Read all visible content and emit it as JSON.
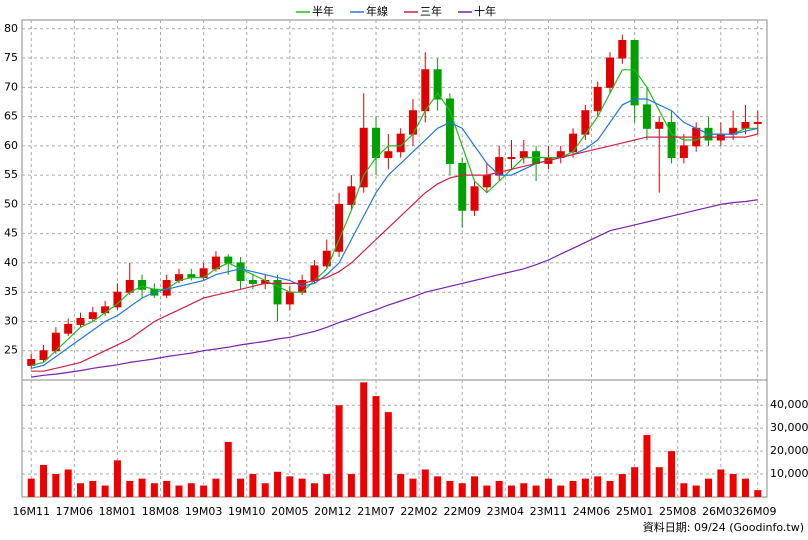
{
  "chart_data": {
    "type": "candlestick",
    "x": [
      0,
      2,
      4,
      6,
      8,
      10,
      12,
      14,
      16,
      18,
      20,
      22,
      24,
      26,
      28,
      30,
      32,
      34,
      36,
      38,
      40,
      42,
      44,
      46,
      48,
      50,
      52,
      54,
      56,
      58,
      60,
      62,
      64,
      66,
      68,
      70,
      72,
      74,
      76,
      78,
      80,
      82,
      84,
      86,
      88,
      90,
      92,
      94,
      96,
      98,
      100,
      102,
      104,
      106,
      108,
      110,
      112,
      114,
      116,
      118
    ],
    "open": [
      22.5,
      23.5,
      25,
      28,
      29.5,
      30.5,
      31.5,
      32.5,
      35,
      37,
      35.5,
      34.5,
      37,
      38,
      37.5,
      39,
      41,
      40,
      37,
      36.5,
      37,
      33,
      35,
      37,
      39.5,
      42,
      50,
      53,
      63,
      58,
      59,
      62,
      66,
      73,
      68,
      57,
      49,
      53,
      55,
      58,
      58,
      59,
      57,
      58,
      59,
      62,
      66,
      70,
      75,
      78,
      67,
      63,
      64,
      58,
      60,
      63,
      61,
      62,
      63,
      64
    ],
    "high": [
      24.5,
      26,
      29,
      30.5,
      31.5,
      32.5,
      33.5,
      36.5,
      40,
      38,
      36.5,
      38,
      39,
      39,
      40,
      42,
      41.5,
      41,
      38,
      38,
      38,
      36,
      38,
      40.5,
      44,
      52,
      55,
      69,
      65,
      62,
      63,
      68,
      76,
      75,
      69,
      58,
      54,
      57,
      60,
      61,
      61,
      60,
      60,
      60,
      63,
      67,
      71,
      76,
      79,
      78,
      70,
      65,
      66,
      62,
      64,
      65,
      64,
      66,
      67,
      66
    ],
    "low": [
      22,
      23,
      24.5,
      27.5,
      29,
      30,
      31,
      32,
      34.5,
      34,
      34,
      34,
      36.5,
      37,
      37,
      38.5,
      38,
      35.5,
      35.5,
      35.5,
      30,
      32,
      34.5,
      36.5,
      39,
      41,
      49,
      52,
      55,
      56,
      58,
      60,
      64,
      66,
      55,
      46,
      48,
      52,
      54,
      56,
      57,
      54,
      56,
      57,
      58,
      61,
      65,
      69,
      74,
      64,
      61,
      52,
      57,
      57,
      59,
      60,
      60,
      61,
      62,
      62
    ],
    "close": [
      23.5,
      25,
      28,
      29.5,
      30.5,
      31.5,
      32.5,
      35,
      37,
      35.5,
      34.5,
      37,
      38,
      37.5,
      39,
      41,
      40,
      37,
      36.5,
      37,
      33,
      35,
      37,
      39.5,
      42,
      50,
      53,
      63,
      58,
      59,
      62,
      66,
      73,
      68,
      57,
      49,
      53,
      55,
      58,
      58,
      59,
      57,
      58,
      59,
      62,
      66,
      70,
      75,
      78,
      67,
      63,
      64,
      58,
      60,
      63,
      61,
      62,
      63,
      64,
      64
    ],
    "up_color": "#e00000",
    "down_color": "#00a000",
    "xlim": [
      -1.5,
      119.5
    ],
    "xticks": [
      {
        "value": 0,
        "label": "16M11"
      },
      {
        "value": 7,
        "label": "17M06"
      },
      {
        "value": 14,
        "label": "18M01"
      },
      {
        "value": 21,
        "label": "18M08"
      },
      {
        "value": 28,
        "label": "19M03"
      },
      {
        "value": 35,
        "label": "19M10"
      },
      {
        "value": 42,
        "label": "20M05"
      },
      {
        "value": 49,
        "label": "20M12"
      },
      {
        "value": 56,
        "label": "21M07"
      },
      {
        "value": 63,
        "label": "22M02"
      },
      {
        "value": 70,
        "label": "22M09"
      },
      {
        "value": 77,
        "label": "23M04"
      },
      {
        "value": 84,
        "label": "23M11"
      },
      {
        "value": 91,
        "label": "24M06"
      },
      {
        "value": 98,
        "label": "25M01"
      },
      {
        "value": 105,
        "label": "25M08"
      },
      {
        "value": 112,
        "label": "26M03"
      },
      {
        "value": 118,
        "label": "26M09"
      }
    ],
    "ylim": [
      20,
      81.5
    ],
    "yticks": [
      25,
      30,
      35,
      40,
      45,
      50,
      55,
      60,
      65,
      70,
      75,
      80
    ],
    "grid": true,
    "series": [
      {
        "name": "半年",
        "color": "#22bb22",
        "values": [
          22.5,
          23,
          25,
          27,
          29,
          30,
          31.5,
          33,
          35,
          36,
          35.5,
          35.5,
          37,
          37.5,
          37.5,
          39,
          40,
          39,
          38,
          37,
          36,
          35,
          35,
          37,
          39,
          44,
          49,
          55,
          58,
          60,
          60,
          62,
          66,
          69,
          66,
          60,
          54,
          52,
          54,
          56,
          58,
          58,
          58,
          58,
          59,
          62,
          65,
          69,
          73,
          73,
          70,
          66,
          62,
          61,
          61,
          62,
          62,
          62,
          63,
          63
        ]
      },
      {
        "name": "年線",
        "color": "#2277dd",
        "values": [
          22,
          22.5,
          24,
          25.5,
          27,
          28.5,
          30,
          31,
          32.5,
          34,
          35,
          35.5,
          36,
          36.5,
          37,
          38,
          38.5,
          39,
          38.5,
          38,
          37.5,
          37,
          36,
          36.5,
          38,
          40,
          44,
          48,
          52,
          55,
          57,
          59,
          61,
          63,
          64,
          63,
          60,
          57,
          55,
          55,
          56,
          57,
          57.5,
          58,
          58.5,
          59.5,
          61,
          64,
          67,
          68,
          68,
          67,
          66,
          64,
          63,
          62,
          62,
          62,
          62.5,
          63
        ]
      },
      {
        "name": "三年",
        "color": "#cc2244",
        "values": [
          21.5,
          21.5,
          22,
          22.5,
          23,
          24,
          25,
          26,
          27,
          28.5,
          30,
          31,
          32,
          33,
          34,
          34.5,
          35,
          35.5,
          36,
          36.5,
          36.5,
          36.5,
          36.5,
          37,
          37.5,
          38.5,
          40,
          42,
          44,
          46,
          48,
          50,
          52,
          53.5,
          54.5,
          55,
          55,
          55,
          55.5,
          56,
          56.5,
          57,
          57.5,
          58,
          58.5,
          59,
          59.5,
          60,
          60.5,
          61,
          61.5,
          61.5,
          61.5,
          61.5,
          61.5,
          61.5,
          61.5,
          61.5,
          61.5,
          62
        ]
      },
      {
        "name": "十年",
        "color": "#7722aa",
        "values": [
          20.5,
          20.8,
          21,
          21.3,
          21.6,
          22,
          22.3,
          22.6,
          23,
          23.3,
          23.6,
          24,
          24.3,
          24.6,
          25,
          25.3,
          25.6,
          26,
          26.3,
          26.6,
          27,
          27.3,
          27.8,
          28.3,
          29,
          29.8,
          30.5,
          31.3,
          32,
          32.8,
          33.5,
          34.2,
          35,
          35.5,
          36,
          36.5,
          37,
          37.5,
          38,
          38.5,
          39,
          39.7,
          40.5,
          41.5,
          42.5,
          43.5,
          44.5,
          45.5,
          46,
          46.5,
          47,
          47.5,
          48,
          48.5,
          49,
          49.5,
          50,
          50.3,
          50.5,
          50.8
        ]
      }
    ],
    "volume": {
      "values": [
        8000,
        14000,
        10000,
        12000,
        6000,
        7000,
        5000,
        16000,
        7000,
        8000,
        6000,
        7000,
        5000,
        6000,
        5000,
        8000,
        24000,
        8000,
        10000,
        6000,
        11000,
        9000,
        8000,
        6000,
        10000,
        40000,
        10000,
        50000,
        44000,
        37000,
        10000,
        8000,
        12000,
        9000,
        7000,
        6000,
        9000,
        5000,
        7000,
        5000,
        6000,
        5000,
        8000,
        5000,
        7000,
        8000,
        9000,
        7000,
        10000,
        13000,
        27000,
        13000,
        20000,
        6000,
        5000,
        8000,
        12000,
        10000,
        8000,
        3000
      ],
      "color": "#ee0000",
      "ylim": [
        0,
        51000
      ],
      "yticks": [
        {
          "value": 10000,
          "label": "10,000"
        },
        {
          "value": 20000,
          "label": "20,000"
        },
        {
          "value": 30000,
          "label": "30,000"
        },
        {
          "value": 40000,
          "label": "40,000"
        }
      ]
    },
    "footnote": "資料日期: 09/24 (Goodinfo.tw)"
  }
}
